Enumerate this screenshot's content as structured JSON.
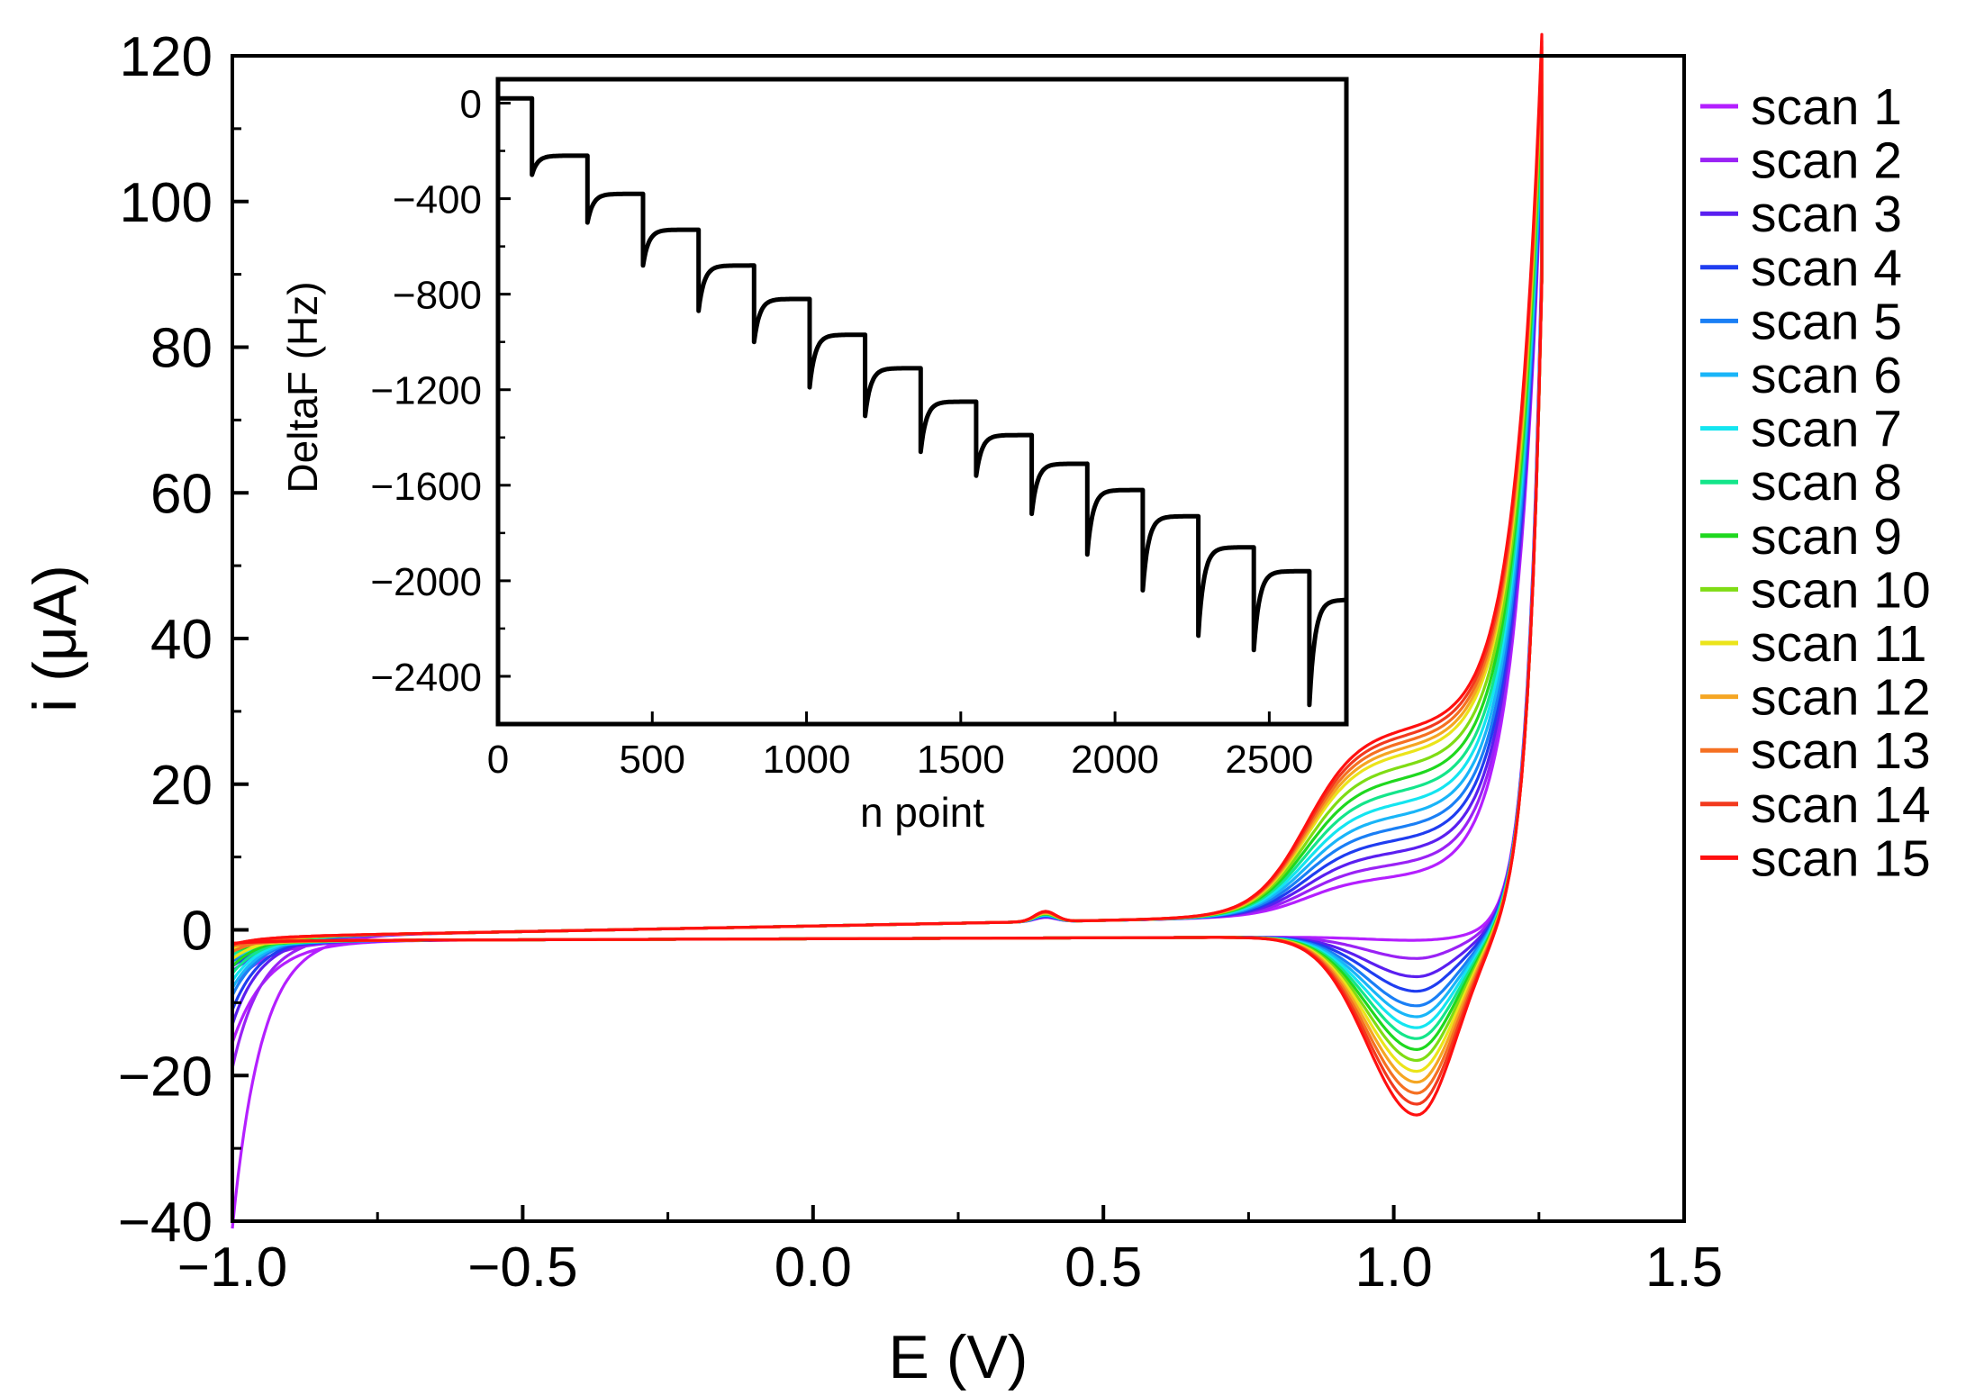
{
  "chart_data": [
    {
      "type": "line",
      "title": "",
      "xlabel": "E (V)",
      "ylabel": "i (μA)",
      "xlim": [
        -1.0,
        1.5
      ],
      "ylim": [
        -40,
        120
      ],
      "x_ticks": [
        "−1.0",
        "−0.5",
        "0.0",
        "0.5",
        "1.0",
        "1.5"
      ],
      "x_tick_values": [
        -1.0,
        -0.5,
        0.0,
        0.5,
        1.0,
        1.5
      ],
      "y_ticks": [
        "−40",
        "−20",
        "0",
        "20",
        "40",
        "60",
        "80",
        "100",
        "120"
      ],
      "y_tick_values": [
        -40,
        -20,
        0,
        20,
        40,
        60,
        80,
        100,
        120
      ],
      "legend_position": "right-outside",
      "description": "Cyclic voltammograms, 15 successive scans; anodic shoulder grows near 0.85-1.15 V and cathodic peak near 1.04 V deepens with scan number",
      "series": [
        {
          "name": "scan 1",
          "color": "#b41fff",
          "cathodic_peak": -0.5,
          "anodic_shoulder": 6,
          "start_current": -40,
          "upper_current": 104
        },
        {
          "name": "scan 2",
          "color": "#9a22f5",
          "cathodic_peak": -3.0,
          "anodic_shoulder": 8,
          "start_current": -18,
          "upper_current": 103
        },
        {
          "name": "scan 3",
          "color": "#5a1ff0",
          "cathodic_peak": -5.5,
          "anodic_shoulder": 10,
          "start_current": -12,
          "upper_current": 102
        },
        {
          "name": "scan 4",
          "color": "#1f3df0",
          "cathodic_peak": -7.5,
          "anodic_shoulder": 12,
          "start_current": -10,
          "upper_current": 102
        },
        {
          "name": "scan 5",
          "color": "#1a7ff5",
          "cathodic_peak": -9.5,
          "anodic_shoulder": 14,
          "start_current": -8,
          "upper_current": 101
        },
        {
          "name": "scan 6",
          "color": "#19b5f8",
          "cathodic_peak": -11.0,
          "anodic_shoulder": 16,
          "start_current": -7,
          "upper_current": 101
        },
        {
          "name": "scan 7",
          "color": "#14e5f0",
          "cathodic_peak": -12.5,
          "anodic_shoulder": 18,
          "start_current": -6,
          "upper_current": 101
        },
        {
          "name": "scan 8",
          "color": "#14e58a",
          "cathodic_peak": -14.0,
          "anodic_shoulder": 20,
          "start_current": -5,
          "upper_current": 100
        },
        {
          "name": "scan 9",
          "color": "#1fd81f",
          "cathodic_peak": -15.5,
          "anodic_shoulder": 22,
          "start_current": -4,
          "upper_current": 100
        },
        {
          "name": "scan 10",
          "color": "#7fdc14",
          "cathodic_peak": -17.0,
          "anodic_shoulder": 24,
          "start_current": -3,
          "upper_current": 100
        },
        {
          "name": "scan 11",
          "color": "#ebe41a",
          "cathodic_peak": -18.5,
          "anodic_shoulder": 26,
          "start_current": -3,
          "upper_current": 100
        },
        {
          "name": "scan 12",
          "color": "#f5a623",
          "cathodic_peak": -20.0,
          "anodic_shoulder": 27,
          "start_current": -2,
          "upper_current": 100
        },
        {
          "name": "scan 13",
          "color": "#f57022",
          "cathodic_peak": -21.5,
          "anodic_shoulder": 28,
          "start_current": -2,
          "upper_current": 100
        },
        {
          "name": "scan 14",
          "color": "#f23a1e",
          "cathodic_peak": -23.0,
          "anodic_shoulder": 29,
          "start_current": -1,
          "upper_current": 100
        },
        {
          "name": "scan 15",
          "color": "#ff1010",
          "cathodic_peak": -24.5,
          "anodic_shoulder": 30,
          "start_current": -1,
          "upper_current": 100
        }
      ]
    },
    {
      "type": "line",
      "title": "",
      "xlabel": "n point",
      "ylabel": "DeltaF (Hz)",
      "xlim": [
        0,
        2750
      ],
      "ylim": [
        -2600,
        100
      ],
      "x_ticks": [
        "0",
        "500",
        "1000",
        "1500",
        "2000",
        "2500"
      ],
      "x_tick_values": [
        0,
        500,
        1000,
        1500,
        2000,
        2500
      ],
      "y_ticks": [
        "0",
        "−400",
        "−800",
        "−1200",
        "−1600",
        "−2000",
        "−2400"
      ],
      "y_tick_values": [
        0,
        -400,
        -800,
        -1200,
        -1600,
        -2000,
        -2400
      ],
      "series": [
        {
          "name": "DeltaF",
          "color": "#000000",
          "step_x": [
            0,
            110,
            290,
            470,
            650,
            830,
            1010,
            1190,
            1370,
            1550,
            1730,
            1910,
            2090,
            2270,
            2450,
            2630
          ],
          "plateau_y": [
            20,
            -220,
            -380,
            -530,
            -680,
            -820,
            -970,
            -1110,
            -1250,
            -1390,
            -1510,
            -1620,
            -1730,
            -1860,
            -1960,
            -2080
          ],
          "dip_y": [
            20,
            -300,
            -500,
            -680,
            -870,
            -1000,
            -1190,
            -1310,
            -1460,
            -1560,
            -1720,
            -1890,
            -2040,
            -2230,
            -2290,
            -2520
          ]
        }
      ]
    }
  ]
}
